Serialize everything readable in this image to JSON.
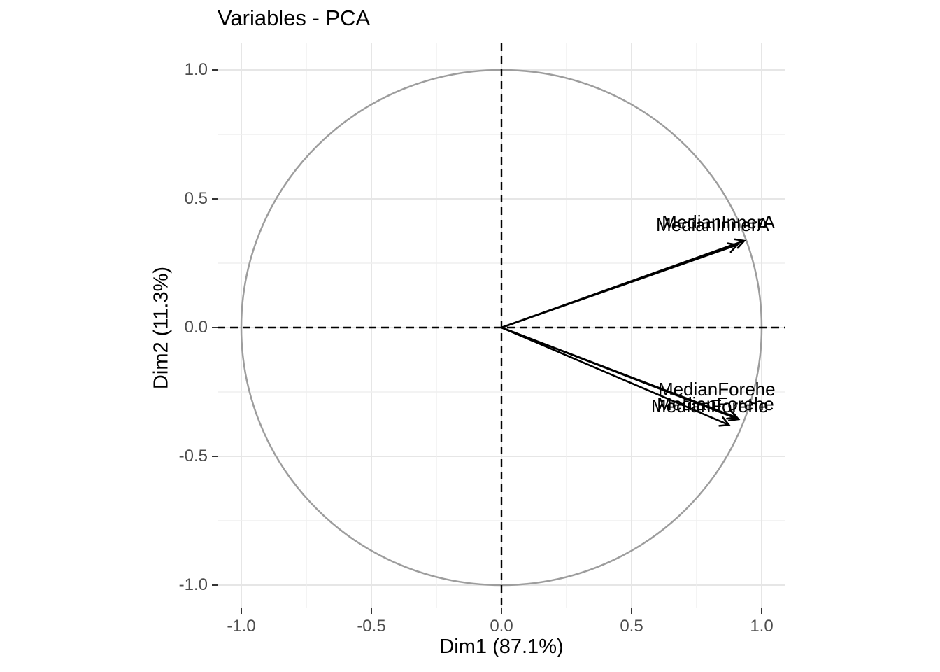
{
  "title": "Variables - PCA",
  "chart_data": {
    "type": "scatter",
    "subtype": "pca-variable-correlation-circle",
    "title": "Variables - PCA",
    "xlabel": "Dim1 (87.1%)",
    "ylabel": "Dim2 (11.3%)",
    "xlim": [
      -1.09,
      1.09
    ],
    "ylim": [
      -1.1,
      1.09
    ],
    "grid_on": true,
    "x_ticks": [
      {
        "value": -1.0,
        "label": "-1.0"
      },
      {
        "value": -0.5,
        "label": "-0.5"
      },
      {
        "value": 0.0,
        "label": "0.0"
      },
      {
        "value": 0.5,
        "label": "0.5"
      },
      {
        "value": 1.0,
        "label": "1.0"
      }
    ],
    "y_ticks": [
      {
        "value": -1.0,
        "label": "-1.0"
      },
      {
        "value": -0.5,
        "label": "-0.5"
      },
      {
        "value": 0.0,
        "label": "0.0"
      },
      {
        "value": 0.5,
        "label": "0.5"
      },
      {
        "value": 1.0,
        "label": "1.0"
      }
    ],
    "grid_lines": [
      -1.0,
      -0.75,
      -0.5,
      -0.25,
      0.0,
      0.25,
      0.5,
      0.75,
      1.0
    ],
    "unit_circle": {
      "radius": 1.0,
      "color": "#9d9d9d"
    },
    "zero_axes": {
      "style": "dashed",
      "color": "#000000"
    },
    "variables": [
      {
        "name": "MedianInnerA",
        "x": 0.933,
        "y": 0.337,
        "label_x": 0.616,
        "label_y": 0.386,
        "label_truncated": true
      },
      {
        "name": "MedianInnerA",
        "x": 0.906,
        "y": 0.321,
        "label_x": 0.594,
        "label_y": 0.375,
        "label_truncated": true
      },
      {
        "name": "MedianForehe",
        "x": 0.911,
        "y": -0.356,
        "label_x": 0.602,
        "label_y": -0.264,
        "label_truncated": true
      },
      {
        "name": "MedianForehe",
        "x": 0.903,
        "y": -0.349,
        "label_x": 0.597,
        "label_y": -0.321,
        "label_truncated": true
      },
      {
        "name": "MedianForehe",
        "x": 0.874,
        "y": -0.378,
        "label_x": 0.575,
        "label_y": -0.329,
        "label_truncated": true
      }
    ],
    "colors": {
      "arrow": "#000000",
      "label": "#000000",
      "grid_major": "#e6e6e6",
      "grid_minor": "#efefef",
      "tick_label": "#4d4d4d",
      "tick_mark": "#333333",
      "circle": "#9d9d9d"
    }
  }
}
